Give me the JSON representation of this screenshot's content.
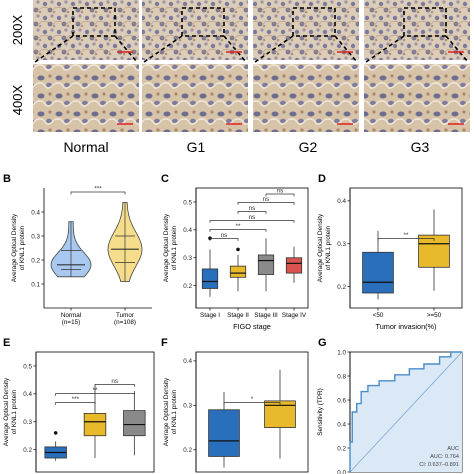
{
  "histology": {
    "row_labels": [
      "200X",
      "400X"
    ],
    "column_labels": [
      "Normal",
      "G1",
      "G2",
      "G3"
    ]
  },
  "colors": {
    "blue": "#2a6fbb",
    "yellow": "#e8b92a",
    "gray": "#8a8a8a",
    "red": "#d9534f",
    "blue_light": "#a8c8ef",
    "yellow_light": "#f6dd8c",
    "roc_fill": "#dbe9f6",
    "roc_line": "#4a8cc9",
    "tissue_bg": "#d9c9b2",
    "scale_bar": "#e02020"
  },
  "chart_data": [
    {
      "panel": "B",
      "type": "violin",
      "ylabel": "Average Optical Density of KNL1 protein",
      "categories": [
        "Normal (n=15)",
        "Tumor (n=108)"
      ],
      "category_lines": [
        [
          "Normal",
          "(n=15)"
        ],
        [
          "Tumor",
          "(n=108)"
        ]
      ],
      "ylim": [
        0.0,
        0.5
      ],
      "yticks": [
        0.1,
        0.2,
        0.3,
        0.4
      ],
      "series": [
        {
          "category": "Normal (n=15)",
          "min": 0.13,
          "q1": 0.16,
          "median": 0.18,
          "q3": 0.24,
          "max": 0.36,
          "color_key": "blue_light"
        },
        {
          "category": "Tumor (n=108)",
          "min": 0.11,
          "q1": 0.19,
          "median": 0.245,
          "q3": 0.3,
          "max": 0.44,
          "color_key": "yellow_light"
        }
      ],
      "significance": [
        {
          "from": 0,
          "to": 1,
          "label": "***"
        }
      ]
    },
    {
      "panel": "C",
      "type": "box",
      "ylabel": "Average Optical Density of KNL1 protein",
      "xlabel": "FIGO stage",
      "categories": [
        "Stage I",
        "Stage II",
        "Stage III",
        "Stage IV"
      ],
      "ylim": [
        0.12,
        0.55
      ],
      "yticks": [
        0.2,
        0.3,
        0.4,
        0.5
      ],
      "series": [
        {
          "category": "Stage I",
          "min": 0.16,
          "q1": 0.19,
          "median": 0.215,
          "q3": 0.26,
          "max": 0.33,
          "outliers": [
            0.37
          ],
          "color_key": "blue"
        },
        {
          "category": "Stage II",
          "min": 0.18,
          "q1": 0.23,
          "median": 0.245,
          "q3": 0.27,
          "max": 0.31,
          "outliers": [
            0.33
          ],
          "color_key": "yellow"
        },
        {
          "category": "Stage III",
          "min": 0.18,
          "q1": 0.24,
          "median": 0.29,
          "q3": 0.31,
          "max": 0.37,
          "outliers": [],
          "color_key": "gray"
        },
        {
          "category": "Stage IV",
          "min": 0.21,
          "q1": 0.245,
          "median": 0.28,
          "q3": 0.3,
          "max": 0.34,
          "outliers": [],
          "color_key": "red"
        }
      ],
      "significance": [
        {
          "from": 0,
          "to": 1,
          "label": "ns",
          "level": 0
        },
        {
          "from": 0,
          "to": 2,
          "label": "**",
          "level": 1
        },
        {
          "from": 0,
          "to": 3,
          "label": "ns",
          "level": 2
        },
        {
          "from": 1,
          "to": 2,
          "label": "ns",
          "level": 3
        },
        {
          "from": 1,
          "to": 3,
          "label": "ns",
          "level": 4
        },
        {
          "from": 2,
          "to": 3,
          "label": "ns",
          "level": 5
        }
      ]
    },
    {
      "panel": "D",
      "type": "box",
      "ylabel": "Average Optical Density of KNL1 protein",
      "xlabel": "Tumor invasion(%)",
      "categories": [
        "<50",
        ">=50"
      ],
      "ylim": [
        0.15,
        0.43
      ],
      "yticks": [
        0.2,
        0.3,
        0.4
      ],
      "series": [
        {
          "category": "<50",
          "min": 0.17,
          "q1": 0.185,
          "median": 0.21,
          "q3": 0.28,
          "max": 0.33,
          "outliers": [],
          "color_key": "blue"
        },
        {
          "category": ">=50",
          "min": 0.19,
          "q1": 0.245,
          "median": 0.3,
          "q3": 0.32,
          "max": 0.38,
          "outliers": [],
          "color_key": "yellow"
        }
      ],
      "significance": [
        {
          "from": 0,
          "to": 1,
          "label": "**"
        }
      ]
    },
    {
      "panel": "E",
      "type": "box",
      "ylabel": "Average Optical Density of KNL1 protein",
      "categories": [
        "",
        "",
        ""
      ],
      "ylim": [
        0.12,
        0.55
      ],
      "yticks": [
        0.2,
        0.3,
        0.4,
        0.5
      ],
      "series": [
        {
          "min": 0.16,
          "q1": 0.17,
          "median": 0.19,
          "q3": 0.21,
          "max": 0.23,
          "outliers": [
            0.26
          ],
          "color_key": "blue"
        },
        {
          "min": 0.17,
          "q1": 0.25,
          "median": 0.3,
          "q3": 0.33,
          "max": 0.43,
          "outliers": [],
          "color_key": "yellow"
        },
        {
          "min": 0.18,
          "q1": 0.25,
          "median": 0.29,
          "q3": 0.34,
          "max": 0.41,
          "outliers": [],
          "color_key": "gray"
        }
      ],
      "significance": [
        {
          "from": 0,
          "to": 1,
          "label": "***",
          "level": 0
        },
        {
          "from": 0,
          "to": 2,
          "label": "**",
          "level": 1
        },
        {
          "from": 1,
          "to": 2,
          "label": "ns",
          "level": 2
        }
      ]
    },
    {
      "panel": "F",
      "type": "box",
      "ylabel": "Average Optical Density of KNL1 protein",
      "categories": [
        "",
        ""
      ],
      "ylim": [
        0.15,
        0.42
      ],
      "yticks": [
        0.2,
        0.3,
        0.4
      ],
      "series": [
        {
          "min": 0.16,
          "q1": 0.185,
          "median": 0.22,
          "q3": 0.29,
          "max": 0.33,
          "outliers": [],
          "color_key": "blue"
        },
        {
          "min": 0.18,
          "q1": 0.25,
          "median": 0.3,
          "q3": 0.31,
          "max": 0.38,
          "outliers": [],
          "color_key": "yellow"
        }
      ],
      "significance": [
        {
          "from": 0,
          "to": 1,
          "label": "*"
        }
      ]
    },
    {
      "panel": "G",
      "type": "line",
      "ylabel": "Sensitivity (TPR)",
      "xlim": [
        0,
        1
      ],
      "ylim": [
        0,
        1
      ],
      "yticks": [
        0.0,
        0.2,
        0.4,
        0.6,
        0.8,
        1.0
      ],
      "x": [
        0,
        0,
        0.02,
        0.02,
        0.06,
        0.06,
        0.1,
        0.1,
        0.16,
        0.16,
        0.26,
        0.26,
        0.4,
        0.4,
        0.53,
        0.53,
        0.66,
        0.66,
        0.8,
        0.8,
        0.9,
        0.9,
        1.0
      ],
      "y": [
        0,
        0.25,
        0.25,
        0.5,
        0.5,
        0.57,
        0.57,
        0.67,
        0.67,
        0.72,
        0.72,
        0.76,
        0.76,
        0.81,
        0.81,
        0.86,
        0.86,
        0.9,
        0.9,
        0.96,
        0.96,
        1.0,
        1.0
      ],
      "legend": [
        "AUC",
        "AUC: 0.764",
        "CI: 0.637–0.891"
      ]
    }
  ]
}
